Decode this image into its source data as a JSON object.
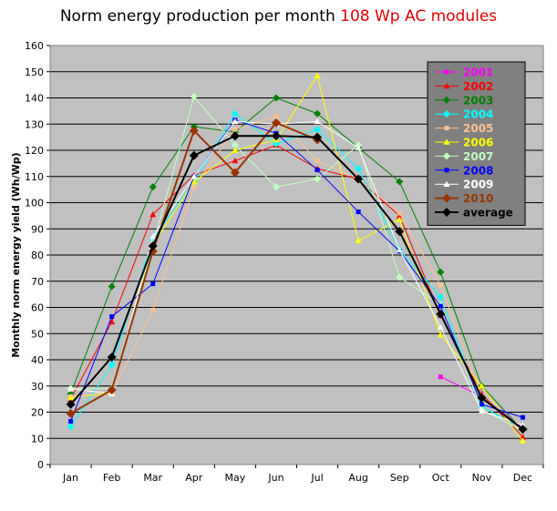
{
  "title": {
    "main": "Norm energy production per month",
    "accent": "108 Wp AC modules"
  },
  "chart_data": {
    "type": "line",
    "title": "Norm energy production per month 108 Wp AC modules",
    "ylabel": "Monthly norm energy yield (Wh/Wp)",
    "xlabel": "",
    "categories": [
      "Jan",
      "Feb",
      "Mar",
      "Apr",
      "May",
      "Jun",
      "Jul",
      "Aug",
      "Sep",
      "Oct",
      "Nov",
      "Dec"
    ],
    "yticks": [
      0,
      10,
      20,
      30,
      40,
      50,
      60,
      70,
      80,
      90,
      100,
      110,
      120,
      130,
      140,
      150,
      160
    ],
    "ylim": [
      0,
      160
    ],
    "grid": true,
    "legend_position": "top-right",
    "series": [
      {
        "name": "2001",
        "color": "#ff00ff",
        "marker": "square",
        "values": [
          null,
          null,
          null,
          null,
          null,
          null,
          null,
          null,
          null,
          33.5,
          26,
          14
        ]
      },
      {
        "name": "2002",
        "color": "#ff0000",
        "marker": "triangle",
        "values": [
          25,
          54.5,
          95.5,
          110.5,
          116,
          122,
          113,
          109,
          95,
          57,
          27,
          10.5
        ]
      },
      {
        "name": "2003",
        "color": "#008000",
        "marker": "diamond",
        "values": [
          27,
          68,
          106,
          129,
          127,
          140,
          134,
          121,
          108,
          73.5,
          30,
          13
        ]
      },
      {
        "name": "2004",
        "color": "#00ffff",
        "marker": "diamond",
        "values": [
          14.5,
          38,
          86,
          108,
          134,
          122.5,
          128,
          113,
          82,
          64,
          22,
          14
        ]
      },
      {
        "name": "2005",
        "color": "#ffc090",
        "marker": "square",
        "values": [
          26,
          27,
          59,
          106,
          128,
          133,
          116,
          109,
          96,
          68.5,
          26,
          13
        ]
      },
      {
        "name": "2006",
        "color": "#ffff00",
        "marker": "triangle",
        "values": [
          25.5,
          27.5,
          84,
          108,
          120,
          124,
          148.5,
          85.5,
          93.5,
          49.5,
          30,
          9
        ]
      },
      {
        "name": "2007",
        "color": "#c0ffc0",
        "marker": "diamond",
        "values": [
          29,
          29,
          84,
          140.5,
          122,
          106,
          109,
          122,
          71.5,
          61,
          21,
          13
        ]
      },
      {
        "name": "2008",
        "color": "#0000ff",
        "marker": "square",
        "values": [
          16.5,
          56.5,
          69,
          110,
          131.5,
          126.5,
          112.5,
          96.5,
          81.5,
          60.5,
          23,
          18
        ]
      },
      {
        "name": "2009",
        "color": "#ffffff",
        "marker": "triangle",
        "values": [
          29,
          27,
          87,
          110,
          131,
          130,
          131,
          121,
          82,
          52.5,
          20.5,
          15
        ]
      },
      {
        "name": "2010",
        "color": "#993300",
        "marker": "diamond",
        "values": [
          19.5,
          28.5,
          81.5,
          127.5,
          111.5,
          130.5,
          124,
          null,
          null,
          null,
          null,
          null
        ]
      },
      {
        "name": "average",
        "color": "#000000",
        "marker": "diamond",
        "values": [
          23,
          41,
          83.5,
          118,
          125.5,
          125.5,
          125,
          109,
          89,
          57.5,
          25.5,
          13.5
        ]
      }
    ]
  },
  "colors": {
    "plot_background": "#c0c0c0",
    "gridline": "#000000",
    "title_accent": "#e00000"
  }
}
